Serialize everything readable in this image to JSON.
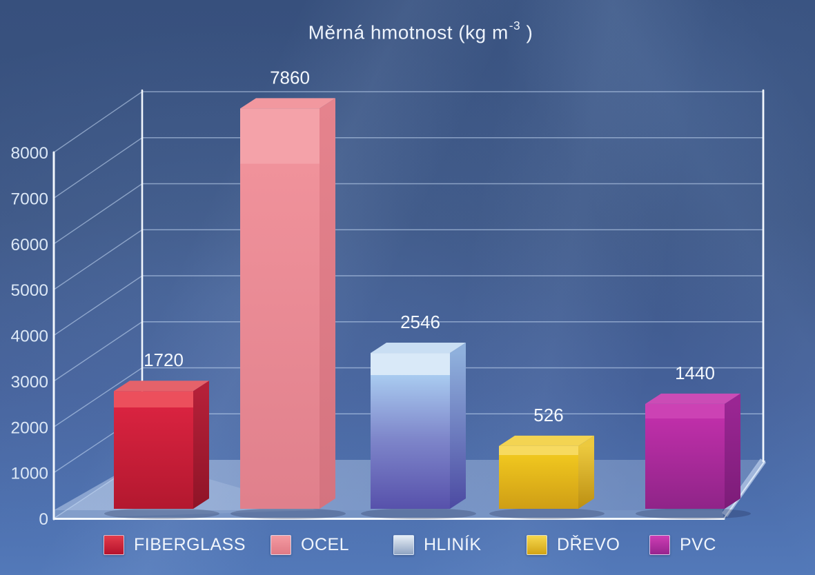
{
  "title": {
    "prefix": "Měrná hmotnost (kg m",
    "superscript": "-3",
    "suffix": " )"
  },
  "chart_data": {
    "type": "bar",
    "projection": "3d",
    "title": "Měrná hmotnost (kg m⁻³)",
    "categories": [
      "FIBERGLASS",
      "OCEL",
      "HLINÍK",
      "DŘEVO",
      "PVC"
    ],
    "values": [
      1720,
      7860,
      2546,
      526,
      1440
    ],
    "value_labels": [
      "1720",
      "7860",
      "2546",
      "526",
      "1440"
    ],
    "xlabel": "",
    "ylabel": "",
    "ylim": [
      0,
      8000
    ],
    "ytick_step": 1000,
    "yticks": [
      0,
      1000,
      2000,
      3000,
      4000,
      5000,
      6000,
      7000,
      8000
    ],
    "grid": true,
    "legend_position": "bottom",
    "series": [
      {
        "name": "FIBERGLASS",
        "value": 1720,
        "label": "1720",
        "colors": {
          "band": "#ec4f5c",
          "front_top": "#d92340",
          "front_bottom": "#b3182f",
          "top_face": "#e5626a",
          "side_top": "#b42039",
          "side_bottom": "#8f1427",
          "legend_top": "#e33b4a",
          "legend_bottom": "#b5122c"
        }
      },
      {
        "name": "OCEL",
        "value": 7860,
        "label": "7860",
        "colors": {
          "band": "#f4a2a9",
          "front_top": "#f0929b",
          "front_bottom": "#e0808c",
          "top_face": "#f2989f",
          "side_top": "#e5838d",
          "side_bottom": "#d4737f",
          "legend_top": "#f49aa1",
          "legend_bottom": "#e07a86"
        }
      },
      {
        "name": "HLINÍK",
        "value": 2546,
        "label": "2546",
        "colors": {
          "band": "#d9e9f8",
          "front_top": "#a9cbf0",
          "front_mid": "#7e86ca",
          "front_bottom": "#5751ab",
          "top_face": "#c9def3",
          "side_top": "#8fb0dc",
          "side_bottom": "#4c4aa2",
          "legend_top": "#e6eef7",
          "legend_bottom": "#90a4c2"
        }
      },
      {
        "name": "DŘEVO",
        "value": 526,
        "label": "526",
        "colors": {
          "band": "#f7da60",
          "front_top": "#f0c71f",
          "front_bottom": "#cf9e15",
          "top_face": "#f3d452",
          "side_top": "#ecc93e",
          "side_bottom": "#bc8f12",
          "legend_top": "#f6d84e",
          "legend_bottom": "#d2a315"
        }
      },
      {
        "name": "PVC",
        "value": 1440,
        "label": "1440",
        "colors": {
          "band": "#cc42b4",
          "front_top": "#bf2fa9",
          "front_bottom": "#8f2488",
          "top_face": "#cb4cb6",
          "side_top": "#9a2693",
          "side_bottom": "#7c1c78",
          "legend_top": "#ce3db4",
          "legend_bottom": "#97248e"
        }
      }
    ]
  },
  "axis": {
    "text_color": "#dce8f6",
    "value_label_color": "#f4f8fd",
    "grid_color": "rgba(200,220,245,0.55)",
    "frame_color": "#f2f7fd"
  },
  "background": {
    "top": "#37507d",
    "bottom": "#5379b9"
  }
}
